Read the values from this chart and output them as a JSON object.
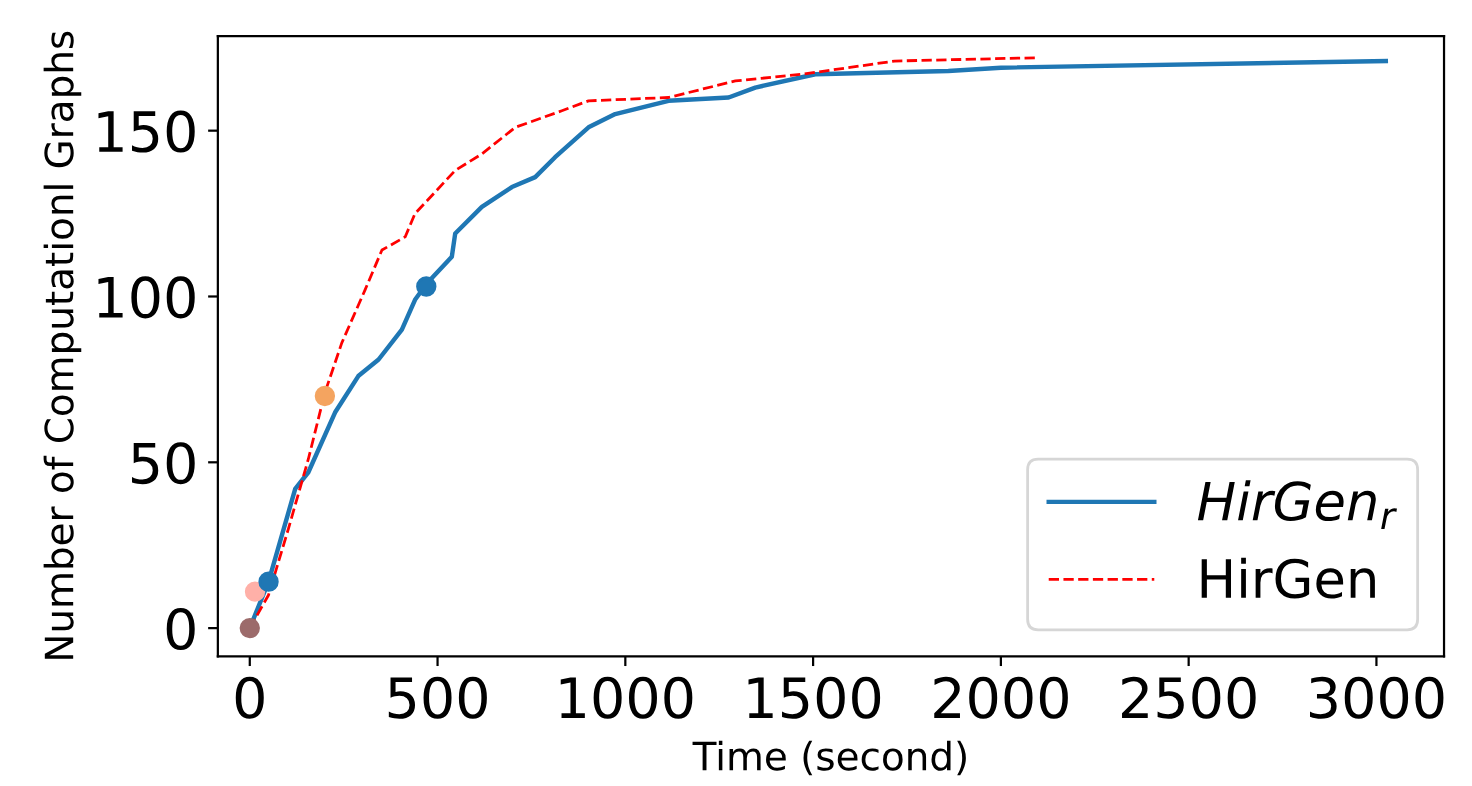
{
  "chart_data": {
    "type": "line",
    "xlabel": "Time (second)",
    "ylabel": "Number of Computationl Graphs",
    "xlim": [
      -85,
      3180
    ],
    "ylim": [
      -8.5,
      178.5
    ],
    "xticks": [
      0,
      500,
      1000,
      1500,
      2000,
      2500,
      3000
    ],
    "yticks": [
      0,
      50,
      100,
      150
    ],
    "grid": false,
    "legend": "bottom right",
    "marker": "none",
    "series": [
      {
        "name": "HirGen$_{r}$",
        "color": "#1f77b4",
        "line_style": "solid",
        "x": [
          0,
          50,
          121,
          156,
          227,
          289,
          343,
          405,
          440,
          472,
          538,
          547,
          618,
          698,
          760,
          813,
          902,
          973,
          1115,
          1275,
          1346,
          1506,
          1860,
          2000,
          3025
        ],
        "values": [
          0,
          14,
          42,
          47,
          65,
          76,
          81,
          90,
          99,
          104,
          112,
          119,
          127,
          133,
          136,
          142,
          151,
          155,
          159,
          160,
          163,
          167,
          168,
          169,
          171
        ]
      },
      {
        "name": "HirGen",
        "color": "#ff0000",
        "line_style": "dashed",
        "x": [
          0,
          50,
          103,
          156,
          200,
          245,
          307,
          352,
          414,
          440,
          547,
          618,
          707,
          831,
          902,
          1115,
          1293,
          1470,
          1717,
          2100
        ],
        "values": [
          0,
          10,
          30,
          51,
          71,
          86,
          102,
          114,
          118,
          125,
          138,
          143,
          151,
          156,
          159,
          160,
          165,
          167,
          171,
          172
        ]
      },
      {
        "type": "scatter",
        "marker": "circle",
        "x": [
          0,
          14,
          50,
          200,
          470
        ],
        "values": [
          0,
          11,
          14,
          70,
          103
        ],
        "colors": [
          "#9c6b6b",
          "#ffb0a8",
          "#1f77b4",
          "#f4a460",
          "#1f77b4"
        ]
      }
    ]
  }
}
